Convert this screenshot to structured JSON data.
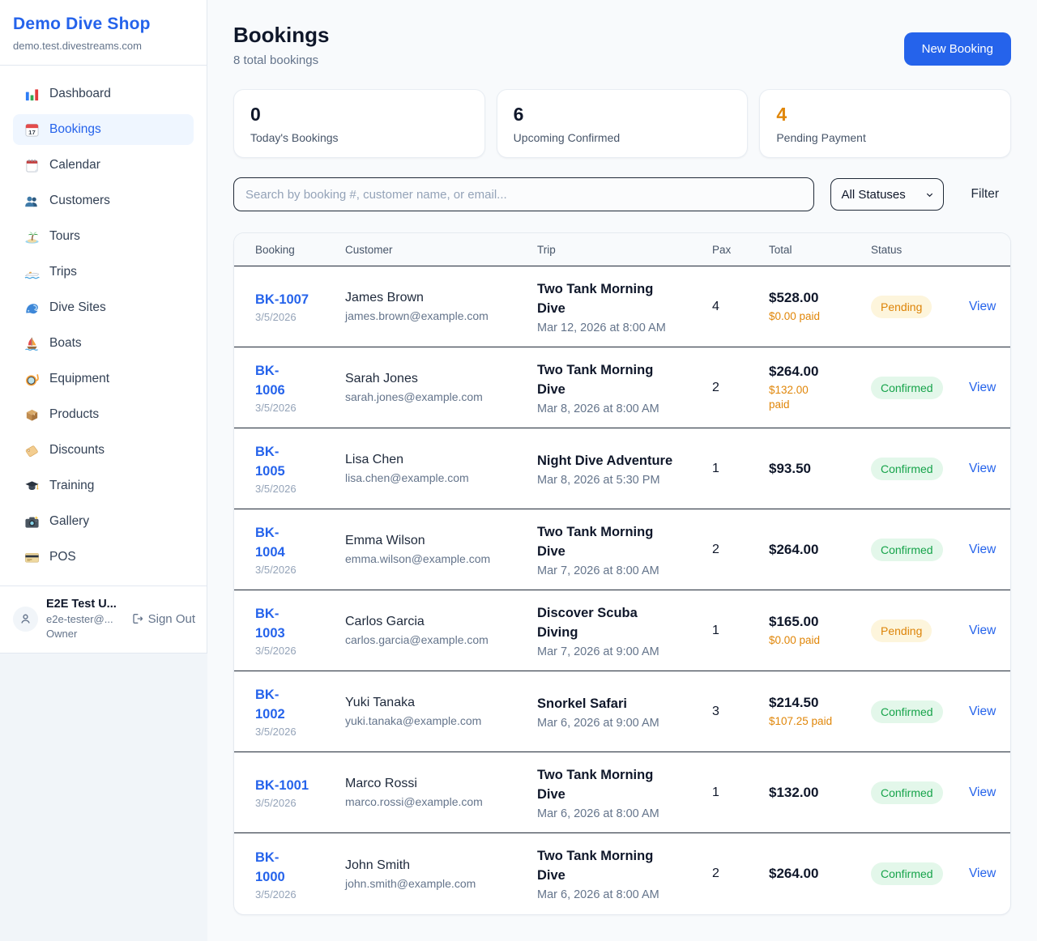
{
  "sidebar": {
    "brand": "Demo Dive Shop",
    "domain": "demo.test.divestreams.com",
    "items": [
      {
        "icon_name": "bar-chart-icon",
        "label": "Dashboard",
        "active": false
      },
      {
        "icon_name": "calendar-icon",
        "label": "Bookings",
        "active": true
      },
      {
        "icon_name": "spiral-calendar-icon",
        "label": "Calendar",
        "active": false
      },
      {
        "icon_name": "users-icon",
        "label": "Customers",
        "active": false
      },
      {
        "icon_name": "island-icon",
        "label": "Tours",
        "active": false
      },
      {
        "icon_name": "speedboat-icon",
        "label": "Trips",
        "active": false
      },
      {
        "icon_name": "wave-icon",
        "label": "Dive Sites",
        "active": false
      },
      {
        "icon_name": "sailboat-icon",
        "label": "Boats",
        "active": false
      },
      {
        "icon_name": "diving-mask-icon",
        "label": "Equipment",
        "active": false
      },
      {
        "icon_name": "package-icon",
        "label": "Products",
        "active": false
      },
      {
        "icon_name": "label-tag-icon",
        "label": "Discounts",
        "active": false
      },
      {
        "icon_name": "graduation-cap-icon",
        "label": "Training",
        "active": false
      },
      {
        "icon_name": "camera-icon",
        "label": "Gallery",
        "active": false
      },
      {
        "icon_name": "credit-card-icon",
        "label": "POS",
        "active": false
      }
    ],
    "user": {
      "name": "E2E Test U...",
      "email": "e2e-tester@...",
      "role": "Owner",
      "sign_out": "Sign Out"
    }
  },
  "header": {
    "title": "Bookings",
    "subtitle": "8 total bookings",
    "new_booking": "New Booking"
  },
  "stats": [
    {
      "value": "0",
      "label": "Today's Bookings",
      "color": "#0f172a"
    },
    {
      "value": "6",
      "label": "Upcoming Confirmed",
      "color": "#0f172a"
    },
    {
      "value": "4",
      "label": "Pending Payment",
      "color": "#e08609"
    }
  ],
  "filters": {
    "search_placeholder": "Search by booking #, customer name, or email...",
    "status_selected": "All Statuses",
    "filter_label": "Filter"
  },
  "table": {
    "columns": [
      "Booking",
      "Customer",
      "Trip",
      "Pax",
      "Total",
      "Status"
    ],
    "view_label": "View",
    "rows": [
      {
        "id_lines": [
          "BK-1007"
        ],
        "date": "3/5/2026",
        "customer": "James Brown",
        "email": "james.brown@example.com",
        "trip_lines": [
          "Two Tank Morning",
          "Dive"
        ],
        "trip_date": "Mar 12, 2026 at 8:00 AM",
        "pax": "4",
        "total": "$528.00",
        "paid_lines": [
          "$0.00 paid"
        ],
        "status": "Pending"
      },
      {
        "id_lines": [
          "BK-",
          "1006"
        ],
        "date": "3/5/2026",
        "customer": "Sarah Jones",
        "email": "sarah.jones@example.com",
        "trip_lines": [
          "Two Tank Morning",
          "Dive"
        ],
        "trip_date": "Mar 8, 2026 at 8:00 AM",
        "pax": "2",
        "total": "$264.00",
        "paid_lines": [
          "$132.00",
          "paid"
        ],
        "status": "Confirmed"
      },
      {
        "id_lines": [
          "BK-",
          "1005"
        ],
        "date": "3/5/2026",
        "customer": "Lisa Chen",
        "email": "lisa.chen@example.com",
        "trip_lines": [
          "Night Dive Adventure"
        ],
        "trip_date": "Mar 8, 2026 at 5:30 PM",
        "pax": "1",
        "total": "$93.50",
        "paid_lines": [],
        "status": "Confirmed"
      },
      {
        "id_lines": [
          "BK-",
          "1004"
        ],
        "date": "3/5/2026",
        "customer": "Emma Wilson",
        "email": "emma.wilson@example.com",
        "trip_lines": [
          "Two Tank Morning",
          "Dive"
        ],
        "trip_date": "Mar 7, 2026 at 8:00 AM",
        "pax": "2",
        "total": "$264.00",
        "paid_lines": [],
        "status": "Confirmed"
      },
      {
        "id_lines": [
          "BK-",
          "1003"
        ],
        "date": "3/5/2026",
        "customer": "Carlos Garcia",
        "email": "carlos.garcia@example.com",
        "trip_lines": [
          "Discover Scuba",
          "Diving"
        ],
        "trip_date": "Mar 7, 2026 at 9:00 AM",
        "pax": "1",
        "total": "$165.00",
        "paid_lines": [
          "$0.00 paid"
        ],
        "status": "Pending"
      },
      {
        "id_lines": [
          "BK-",
          "1002"
        ],
        "date": "3/5/2026",
        "customer": "Yuki Tanaka",
        "email": "yuki.tanaka@example.com",
        "trip_lines": [
          "Snorkel Safari"
        ],
        "trip_date": "Mar 6, 2026 at 9:00 AM",
        "pax": "3",
        "total": "$214.50",
        "paid_lines": [
          "$107.25 paid"
        ],
        "status": "Confirmed"
      },
      {
        "id_lines": [
          "BK-1001"
        ],
        "date": "3/5/2026",
        "customer": "Marco Rossi",
        "email": "marco.rossi@example.com",
        "trip_lines": [
          "Two Tank Morning",
          "Dive"
        ],
        "trip_date": "Mar 6, 2026 at 8:00 AM",
        "pax": "1",
        "total": "$132.00",
        "paid_lines": [],
        "status": "Confirmed"
      },
      {
        "id_lines": [
          "BK-",
          "1000"
        ],
        "date": "3/5/2026",
        "customer": "John Smith",
        "email": "john.smith@example.com",
        "trip_lines": [
          "Two Tank Morning",
          "Dive"
        ],
        "trip_date": "Mar 6, 2026 at 8:00 AM",
        "pax": "2",
        "total": "$264.00",
        "paid_lines": [],
        "status": "Confirmed"
      }
    ]
  }
}
